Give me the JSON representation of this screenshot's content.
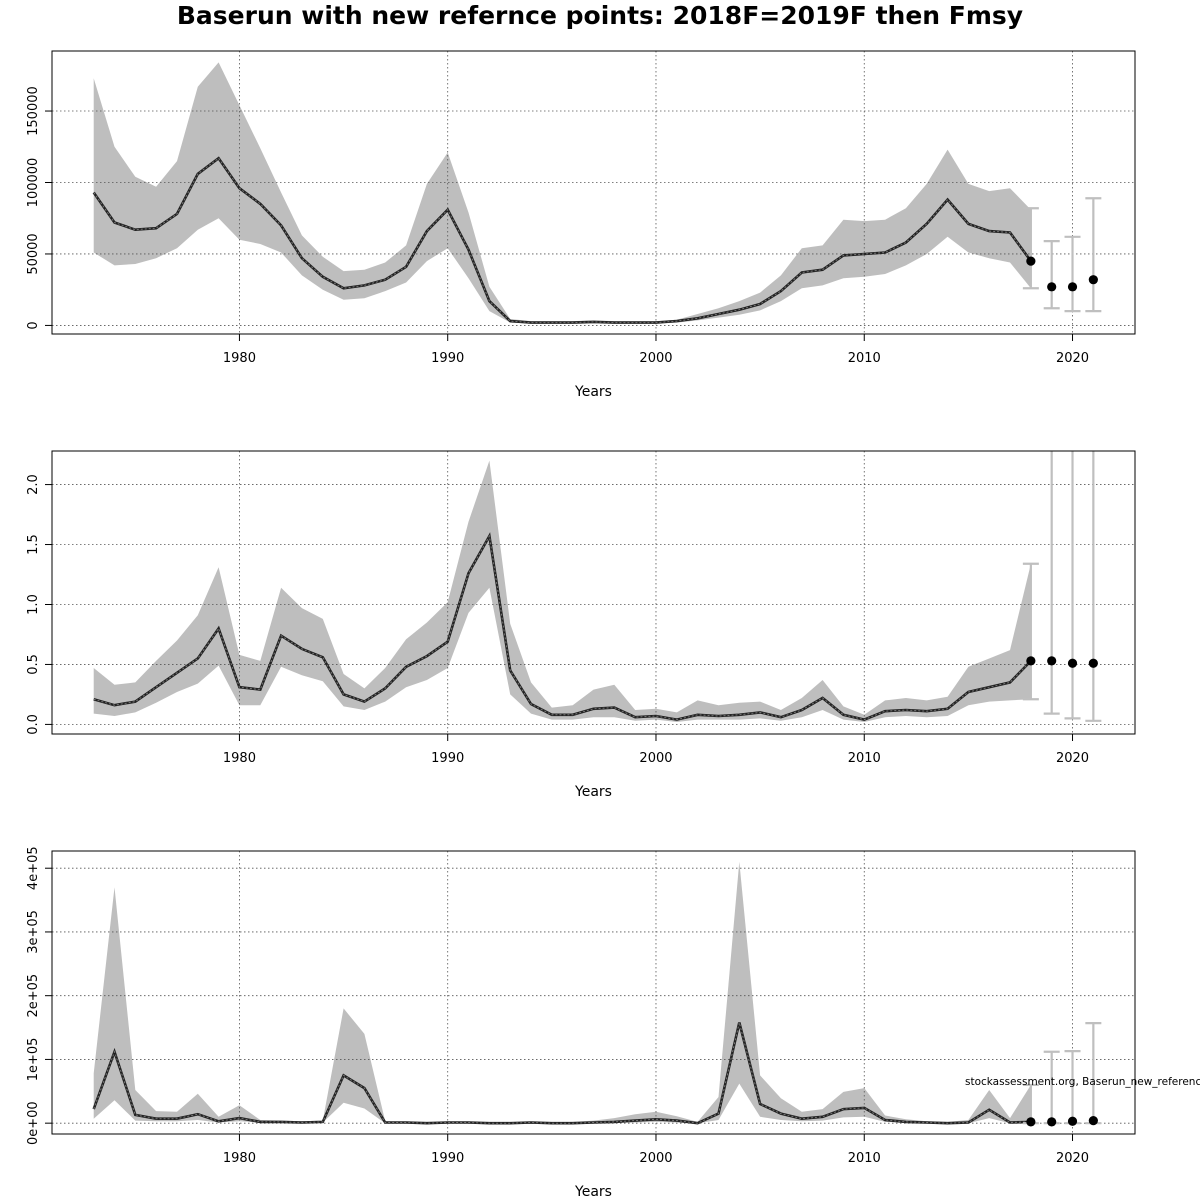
{
  "title": "Baserun with new refernce points: 2018F=2019F then Fmsy",
  "colors": {
    "band": "#bebebe",
    "line": "#222222",
    "error_bar": "#bfbfbf",
    "point": "#000000",
    "grid": "#555555"
  },
  "credit": "stockassessment.org, Baserun_new_reference, ",
  "chart_data": [
    {
      "type": "area",
      "xlabel": "Years",
      "ylabel": "",
      "xlim": [
        1971,
        2023
      ],
      "ylim": [
        -6000,
        192000
      ],
      "x_ticks": [
        1980,
        1990,
        2000,
        2010,
        2020
      ],
      "y_ticks": [
        0,
        50000,
        100000,
        150000
      ],
      "y_tick_labels": [
        "0",
        "50000",
        "100000",
        "150000"
      ],
      "grid": true,
      "years": [
        1973,
        1974,
        1975,
        1976,
        1977,
        1978,
        1979,
        1980,
        1981,
        1982,
        1983,
        1984,
        1985,
        1986,
        1987,
        1988,
        1989,
        1990,
        1991,
        1992,
        1993,
        1994,
        1995,
        1996,
        1997,
        1998,
        1999,
        2000,
        2001,
        2002,
        2003,
        2004,
        2005,
        2006,
        2007,
        2008,
        2009,
        2010,
        2011,
        2012,
        2013,
        2014,
        2015,
        2016,
        2017,
        2018
      ],
      "estimate": [
        93000,
        72000,
        67000,
        68000,
        78000,
        106000,
        117000,
        96000,
        85000,
        70000,
        47000,
        34000,
        26000,
        28000,
        32000,
        41000,
        66000,
        81000,
        53000,
        17000,
        3000,
        2000,
        2000,
        2000,
        2500,
        2000,
        2000,
        2000,
        3000,
        5000,
        8000,
        11000,
        15000,
        24000,
        37000,
        39000,
        49000,
        50000,
        51000,
        58000,
        71000,
        88000,
        71000,
        66000,
        65000,
        45000
      ],
      "upper": [
        173000,
        125000,
        104000,
        97000,
        115000,
        167000,
        184000,
        154000,
        124000,
        93000,
        63000,
        48000,
        38000,
        39000,
        44000,
        56000,
        99000,
        121000,
        79000,
        27000,
        4500,
        3000,
        3000,
        3000,
        3500,
        3000,
        3000,
        3000,
        4000,
        8000,
        12000,
        17000,
        23000,
        35000,
        54000,
        56000,
        74000,
        73000,
        74000,
        82000,
        99000,
        123000,
        99000,
        94000,
        96000,
        81000
      ],
      "lower": [
        51000,
        42000,
        43000,
        47000,
        54000,
        67000,
        75000,
        60000,
        57000,
        51000,
        35000,
        25000,
        18000,
        19000,
        24000,
        30000,
        45000,
        54000,
        33000,
        10000,
        2000,
        1500,
        1500,
        1500,
        1800,
        1500,
        1500,
        1500,
        2000,
        3500,
        5500,
        7500,
        10500,
        17000,
        26000,
        28000,
        33000,
        34000,
        36000,
        42000,
        50000,
        62000,
        51000,
        47000,
        44000,
        26000
      ],
      "forecast_years": [
        2018,
        2019,
        2020,
        2021
      ],
      "forecast_estimate": [
        45000,
        27000,
        27000,
        32000
      ],
      "forecast_lower": [
        26000,
        12000,
        10000,
        10000
      ],
      "forecast_upper": [
        82000,
        59000,
        62000,
        89000
      ]
    },
    {
      "type": "area",
      "xlabel": "Years",
      "ylabel": "",
      "xlim": [
        1971,
        2023
      ],
      "ylim": [
        -0.08,
        2.28
      ],
      "x_ticks": [
        1980,
        1990,
        2000,
        2010,
        2020
      ],
      "y_ticks": [
        0,
        0.5,
        1,
        1.5,
        2
      ],
      "y_tick_labels": [
        "0.0",
        "0.5",
        "1.0",
        "1.5",
        "2.0"
      ],
      "grid": true,
      "years": [
        1973,
        1974,
        1975,
        1976,
        1977,
        1978,
        1979,
        1980,
        1981,
        1982,
        1983,
        1984,
        1985,
        1986,
        1987,
        1988,
        1989,
        1990,
        1991,
        1992,
        1993,
        1994,
        1995,
        1996,
        1997,
        1998,
        1999,
        2000,
        2001,
        2002,
        2003,
        2004,
        2005,
        2006,
        2007,
        2008,
        2009,
        2010,
        2011,
        2012,
        2013,
        2014,
        2015,
        2016,
        2017,
        2018
      ],
      "estimate": [
        0.21,
        0.16,
        0.19,
        0.31,
        0.43,
        0.55,
        0.8,
        0.31,
        0.29,
        0.74,
        0.63,
        0.56,
        0.25,
        0.19,
        0.3,
        0.48,
        0.57,
        0.69,
        1.26,
        1.57,
        0.45,
        0.17,
        0.08,
        0.08,
        0.13,
        0.14,
        0.06,
        0.07,
        0.04,
        0.08,
        0.07,
        0.08,
        0.1,
        0.06,
        0.12,
        0.22,
        0.08,
        0.04,
        0.11,
        0.12,
        0.11,
        0.13,
        0.27,
        0.31,
        0.35,
        0.53
      ],
      "upper": [
        0.47,
        0.33,
        0.35,
        0.53,
        0.7,
        0.91,
        1.31,
        0.58,
        0.53,
        1.14,
        0.97,
        0.88,
        0.42,
        0.3,
        0.47,
        0.71,
        0.85,
        1.02,
        1.69,
        2.2,
        0.84,
        0.35,
        0.14,
        0.16,
        0.29,
        0.33,
        0.12,
        0.13,
        0.1,
        0.2,
        0.16,
        0.18,
        0.19,
        0.12,
        0.22,
        0.37,
        0.15,
        0.08,
        0.2,
        0.22,
        0.2,
        0.23,
        0.48,
        0.55,
        0.62,
        1.34
      ],
      "lower": [
        0.09,
        0.07,
        0.1,
        0.18,
        0.27,
        0.34,
        0.49,
        0.16,
        0.16,
        0.48,
        0.41,
        0.36,
        0.15,
        0.12,
        0.19,
        0.31,
        0.37,
        0.47,
        0.93,
        1.14,
        0.25,
        0.09,
        0.04,
        0.04,
        0.06,
        0.06,
        0.03,
        0.04,
        0.02,
        0.04,
        0.04,
        0.04,
        0.05,
        0.03,
        0.06,
        0.12,
        0.04,
        0.02,
        0.06,
        0.07,
        0.06,
        0.07,
        0.16,
        0.19,
        0.2,
        0.21
      ],
      "forecast_years": [
        2018,
        2019,
        2020,
        2021
      ],
      "forecast_estimate": [
        0.53,
        0.53,
        0.51,
        0.51
      ],
      "forecast_lower": [
        0.21,
        0.09,
        0.05,
        0.03
      ],
      "forecast_upper": [
        1.34,
        2.3,
        2.3,
        2.3
      ]
    },
    {
      "type": "area",
      "xlabel": "Years",
      "ylabel": "",
      "xlim": [
        1971,
        2023
      ],
      "ylim": [
        -0.17,
        4.27
      ],
      "x_ticks": [
        1980,
        1990,
        2000,
        2010,
        2020
      ],
      "y_ticks": [
        0,
        1,
        2,
        3,
        4
      ],
      "y_tick_labels": [
        "0e+00",
        "1e+05",
        "2e+05",
        "3e+05",
        "4e+05"
      ],
      "grid": true,
      "years": [
        1973,
        1974,
        1975,
        1976,
        1977,
        1978,
        1979,
        1980,
        1981,
        1982,
        1983,
        1984,
        1985,
        1986,
        1987,
        1988,
        1989,
        1990,
        1991,
        1992,
        1993,
        1994,
        1995,
        1996,
        1997,
        1998,
        1999,
        2000,
        2001,
        2002,
        2003,
        2004,
        2005,
        2006,
        2007,
        2008,
        2009,
        2010,
        2011,
        2012,
        2013,
        2014,
        2015,
        2016,
        2017,
        2018
      ],
      "estimate": [
        0.22,
        1.12,
        0.13,
        0.07,
        0.07,
        0.14,
        0.03,
        0.08,
        0.02,
        0.02,
        0.01,
        0.02,
        0.75,
        0.55,
        0.01,
        0.01,
        0.0,
        0.01,
        0.01,
        0.0,
        0.0,
        0.01,
        0.0,
        0.0,
        0.01,
        0.02,
        0.04,
        0.06,
        0.04,
        0.0,
        0.15,
        1.58,
        0.3,
        0.15,
        0.07,
        0.1,
        0.22,
        0.24,
        0.05,
        0.02,
        0.01,
        0.0,
        0.01,
        0.21,
        0.01,
        0.02
      ],
      "upper": [
        0.78,
        3.7,
        0.52,
        0.19,
        0.18,
        0.46,
        0.1,
        0.28,
        0.05,
        0.04,
        0.03,
        0.04,
        1.8,
        1.4,
        0.03,
        0.02,
        0.02,
        0.02,
        0.02,
        0.01,
        0.01,
        0.02,
        0.01,
        0.02,
        0.04,
        0.08,
        0.14,
        0.18,
        0.11,
        0.02,
        0.41,
        4.1,
        0.75,
        0.39,
        0.18,
        0.22,
        0.49,
        0.55,
        0.12,
        0.06,
        0.03,
        0.02,
        0.05,
        0.52,
        0.08,
        0.6
      ],
      "lower": [
        0.07,
        0.36,
        0.04,
        0.03,
        0.03,
        0.05,
        0.01,
        0.03,
        0.01,
        0.01,
        0.0,
        0.01,
        0.32,
        0.23,
        0.0,
        0.0,
        0.0,
        0.0,
        0.0,
        0.0,
        0.0,
        0.0,
        0.0,
        0.0,
        0.0,
        0.01,
        0.01,
        0.02,
        0.01,
        0.0,
        0.05,
        0.62,
        0.1,
        0.05,
        0.03,
        0.04,
        0.09,
        0.1,
        0.02,
        0.01,
        0.0,
        0.0,
        0.0,
        0.08,
        0.0,
        0.0
      ],
      "forecast_years": [
        2018,
        2019,
        2020,
        2021
      ],
      "forecast_estimate": [
        0.02,
        0.02,
        0.03,
        0.04
      ],
      "forecast_lower": [
        0.0,
        0.0,
        0.0,
        0.0
      ],
      "forecast_upper": [
        0.6,
        1.12,
        1.13,
        1.57
      ]
    }
  ]
}
